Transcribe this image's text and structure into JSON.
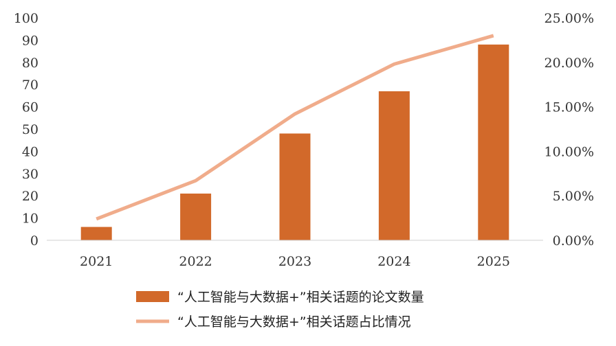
{
  "chart_data": {
    "type": "bar",
    "categories": [
      "2021",
      "2022",
      "2023",
      "2024",
      "2025"
    ],
    "series": [
      {
        "name": "“人工智能与大数据+”相关话题的论文数量",
        "type": "bar",
        "axis": "left",
        "color": "#D2692A",
        "values": [
          6,
          21,
          48,
          67,
          88
        ]
      },
      {
        "name": "“人工智能与大数据+”相关话题占比情况",
        "type": "line",
        "axis": "right",
        "color": "#F0AC8B",
        "values": [
          2.4,
          6.7,
          14.2,
          19.8,
          23.0
        ]
      }
    ],
    "left_axis": {
      "min": 0,
      "max": 100,
      "step": 10,
      "ticks": [
        "0",
        "10",
        "20",
        "30",
        "40",
        "50",
        "60",
        "70",
        "80",
        "90",
        "100"
      ]
    },
    "right_axis": {
      "min": 0,
      "max": 25,
      "step": 5,
      "ticks": [
        "0.00%",
        "5.00%",
        "10.00%",
        "15.00%",
        "20.00%",
        "25.00%"
      ]
    },
    "grid": false,
    "legend_position": "bottom"
  }
}
